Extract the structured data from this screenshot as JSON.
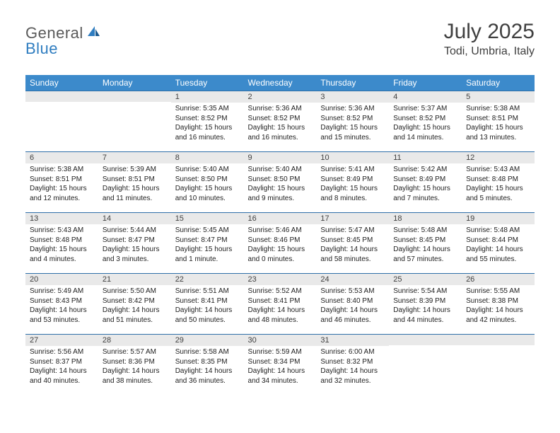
{
  "brand": {
    "word1": "General",
    "word2": "Blue"
  },
  "title": "July 2025",
  "location": "Todi, Umbria, Italy",
  "colors": {
    "header_bg": "#3c8acb",
    "header_text": "#ffffff",
    "daynum_bg": "#e9e9e9",
    "cell_border": "#2f6fa8",
    "brand_gray": "#5a5a5a",
    "brand_blue": "#2f7dc0",
    "text": "#222222"
  },
  "weekdays": [
    "Sunday",
    "Monday",
    "Tuesday",
    "Wednesday",
    "Thursday",
    "Friday",
    "Saturday"
  ],
  "weeks": [
    [
      {
        "n": "",
        "sunrise": "",
        "sunset": "",
        "daylight": ""
      },
      {
        "n": "",
        "sunrise": "",
        "sunset": "",
        "daylight": ""
      },
      {
        "n": "1",
        "sunrise": "Sunrise: 5:35 AM",
        "sunset": "Sunset: 8:52 PM",
        "daylight": "Daylight: 15 hours and 16 minutes."
      },
      {
        "n": "2",
        "sunrise": "Sunrise: 5:36 AM",
        "sunset": "Sunset: 8:52 PM",
        "daylight": "Daylight: 15 hours and 16 minutes."
      },
      {
        "n": "3",
        "sunrise": "Sunrise: 5:36 AM",
        "sunset": "Sunset: 8:52 PM",
        "daylight": "Daylight: 15 hours and 15 minutes."
      },
      {
        "n": "4",
        "sunrise": "Sunrise: 5:37 AM",
        "sunset": "Sunset: 8:52 PM",
        "daylight": "Daylight: 15 hours and 14 minutes."
      },
      {
        "n": "5",
        "sunrise": "Sunrise: 5:38 AM",
        "sunset": "Sunset: 8:51 PM",
        "daylight": "Daylight: 15 hours and 13 minutes."
      }
    ],
    [
      {
        "n": "6",
        "sunrise": "Sunrise: 5:38 AM",
        "sunset": "Sunset: 8:51 PM",
        "daylight": "Daylight: 15 hours and 12 minutes."
      },
      {
        "n": "7",
        "sunrise": "Sunrise: 5:39 AM",
        "sunset": "Sunset: 8:51 PM",
        "daylight": "Daylight: 15 hours and 11 minutes."
      },
      {
        "n": "8",
        "sunrise": "Sunrise: 5:40 AM",
        "sunset": "Sunset: 8:50 PM",
        "daylight": "Daylight: 15 hours and 10 minutes."
      },
      {
        "n": "9",
        "sunrise": "Sunrise: 5:40 AM",
        "sunset": "Sunset: 8:50 PM",
        "daylight": "Daylight: 15 hours and 9 minutes."
      },
      {
        "n": "10",
        "sunrise": "Sunrise: 5:41 AM",
        "sunset": "Sunset: 8:49 PM",
        "daylight": "Daylight: 15 hours and 8 minutes."
      },
      {
        "n": "11",
        "sunrise": "Sunrise: 5:42 AM",
        "sunset": "Sunset: 8:49 PM",
        "daylight": "Daylight: 15 hours and 7 minutes."
      },
      {
        "n": "12",
        "sunrise": "Sunrise: 5:43 AM",
        "sunset": "Sunset: 8:48 PM",
        "daylight": "Daylight: 15 hours and 5 minutes."
      }
    ],
    [
      {
        "n": "13",
        "sunrise": "Sunrise: 5:43 AM",
        "sunset": "Sunset: 8:48 PM",
        "daylight": "Daylight: 15 hours and 4 minutes."
      },
      {
        "n": "14",
        "sunrise": "Sunrise: 5:44 AM",
        "sunset": "Sunset: 8:47 PM",
        "daylight": "Daylight: 15 hours and 3 minutes."
      },
      {
        "n": "15",
        "sunrise": "Sunrise: 5:45 AM",
        "sunset": "Sunset: 8:47 PM",
        "daylight": "Daylight: 15 hours and 1 minute."
      },
      {
        "n": "16",
        "sunrise": "Sunrise: 5:46 AM",
        "sunset": "Sunset: 8:46 PM",
        "daylight": "Daylight: 15 hours and 0 minutes."
      },
      {
        "n": "17",
        "sunrise": "Sunrise: 5:47 AM",
        "sunset": "Sunset: 8:45 PM",
        "daylight": "Daylight: 14 hours and 58 minutes."
      },
      {
        "n": "18",
        "sunrise": "Sunrise: 5:48 AM",
        "sunset": "Sunset: 8:45 PM",
        "daylight": "Daylight: 14 hours and 57 minutes."
      },
      {
        "n": "19",
        "sunrise": "Sunrise: 5:48 AM",
        "sunset": "Sunset: 8:44 PM",
        "daylight": "Daylight: 14 hours and 55 minutes."
      }
    ],
    [
      {
        "n": "20",
        "sunrise": "Sunrise: 5:49 AM",
        "sunset": "Sunset: 8:43 PM",
        "daylight": "Daylight: 14 hours and 53 minutes."
      },
      {
        "n": "21",
        "sunrise": "Sunrise: 5:50 AM",
        "sunset": "Sunset: 8:42 PM",
        "daylight": "Daylight: 14 hours and 51 minutes."
      },
      {
        "n": "22",
        "sunrise": "Sunrise: 5:51 AM",
        "sunset": "Sunset: 8:41 PM",
        "daylight": "Daylight: 14 hours and 50 minutes."
      },
      {
        "n": "23",
        "sunrise": "Sunrise: 5:52 AM",
        "sunset": "Sunset: 8:41 PM",
        "daylight": "Daylight: 14 hours and 48 minutes."
      },
      {
        "n": "24",
        "sunrise": "Sunrise: 5:53 AM",
        "sunset": "Sunset: 8:40 PM",
        "daylight": "Daylight: 14 hours and 46 minutes."
      },
      {
        "n": "25",
        "sunrise": "Sunrise: 5:54 AM",
        "sunset": "Sunset: 8:39 PM",
        "daylight": "Daylight: 14 hours and 44 minutes."
      },
      {
        "n": "26",
        "sunrise": "Sunrise: 5:55 AM",
        "sunset": "Sunset: 8:38 PM",
        "daylight": "Daylight: 14 hours and 42 minutes."
      }
    ],
    [
      {
        "n": "27",
        "sunrise": "Sunrise: 5:56 AM",
        "sunset": "Sunset: 8:37 PM",
        "daylight": "Daylight: 14 hours and 40 minutes."
      },
      {
        "n": "28",
        "sunrise": "Sunrise: 5:57 AM",
        "sunset": "Sunset: 8:36 PM",
        "daylight": "Daylight: 14 hours and 38 minutes."
      },
      {
        "n": "29",
        "sunrise": "Sunrise: 5:58 AM",
        "sunset": "Sunset: 8:35 PM",
        "daylight": "Daylight: 14 hours and 36 minutes."
      },
      {
        "n": "30",
        "sunrise": "Sunrise: 5:59 AM",
        "sunset": "Sunset: 8:34 PM",
        "daylight": "Daylight: 14 hours and 34 minutes."
      },
      {
        "n": "31",
        "sunrise": "Sunrise: 6:00 AM",
        "sunset": "Sunset: 8:32 PM",
        "daylight": "Daylight: 14 hours and 32 minutes."
      },
      {
        "n": "",
        "sunrise": "",
        "sunset": "",
        "daylight": ""
      },
      {
        "n": "",
        "sunrise": "",
        "sunset": "",
        "daylight": ""
      }
    ]
  ]
}
